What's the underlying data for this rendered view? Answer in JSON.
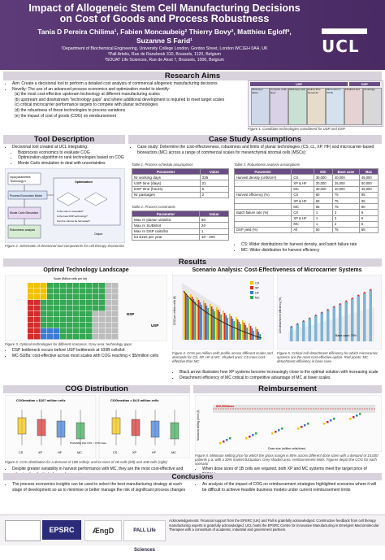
{
  "header": {
    "title_line1": "Impact of Allogeneic Stem Cell Manufacturing Decisions",
    "title_line2": "on Cost of Goods and Process Robustness",
    "authors_line1": "Tania D Pereira Chilima¹, Fabien Moncaubeig² Thierry Bovy², Matthieu Egloff³,",
    "authors_line2": "Suzanne S Farid¹",
    "affil1": "¹Department of Biochemical Engineering, University College London, Gordon Street, London WC1EH 0AH, UK",
    "affil2": "²Pall Artelis, Rue de Ransbeek 310, Brussels, 1120, Belgium",
    "affil3": "³SOUAT Life Sciences, Rue de Alost 7, Brussels, 1000, Belgium",
    "logo": "UCL"
  },
  "research_aims": {
    "title": "Research Aims",
    "items": [
      "Aim: Create a decisional tool to perform a detailed cost analysis of commercial allogeneic manufacturing decisions",
      "Novelty: The use of an advanced process economics and optimization model to identify:",
      "(a) the most cost-effective upstream technology at different manufacturing scales",
      "(b) upstream and downstream \"technology gaps\" and where additional development is required to meet target scales",
      "(c) critical microcarrier performance targets to compete with planar technologies",
      "(d) the robustness of these technologies to process variations",
      "(e) the impact of cost of goods (COG) on reimbursement"
    ],
    "fig1_caption": "Figure 1. Candidate technologies considered for USP and DSP",
    "usp_label": "USP",
    "dsp_label": "DSP",
    "tech_labels": [
      "Multi-layer flasks",
      "Compact multi-layer",
      "Multi-layer (40)",
      "Hollow fibre bioreactor",
      "Microcarriers (STR)",
      "Fluidised bed",
      "Centrifuge"
    ]
  },
  "tool_description": {
    "title": "Tool Description",
    "items": [
      "Decisional tool created at UCL integrating:",
      "Bioprocess economics to evaluate COG",
      "Optimization algorithm to rank technologies based on COG",
      "Monte Carlo simulation to deal with uncertainties"
    ],
    "diagram_labels": [
      "Input parameters",
      "Technology n",
      "Optimization",
      "Process Economics Model",
      "Monte Carlo Simulation",
      "Robustness analysis",
      "Is the max m exceeded?",
      "Is the best DSP technology?",
      "Can the volume be harvested?",
      "Output"
    ],
    "fig2_caption": "Figure 2. Schematic of decisional tool components for cell therapy economics"
  },
  "case_study": {
    "title": "Case Study Assumptions",
    "text": "Case study: Determine the cost-effectiveness, robustness and limits of planar technologies (CS, cL, XP, HF) and microcarrier-based bioreactors (MC) across a range of commercial scales for mesenchymal stromal cells (MSCs):",
    "table1_caption": "Table 1. Process schedule assumptions",
    "table1_headers": [
      "Parameter",
      "Value"
    ],
    "table1_rows": [
      [
        "Nr working days",
        "335"
      ],
      [
        "USP time (days)",
        "21"
      ],
      [
        "DSP time (hours)",
        "6"
      ],
      [
        "Nr passages",
        "2"
      ]
    ],
    "table2_caption": "Table 2. Process constraints",
    "table2_headers": [
      "Parameter",
      "Value"
    ],
    "table2_rows": [
      [
        "Max nr planar units/lot",
        "60"
      ],
      [
        "Max nr SUBs/lot",
        "20"
      ],
      [
        "Max nr DSP units/lot",
        "1"
      ],
      [
        "lot sizes per year",
        "10 - 200"
      ]
    ],
    "table3_caption": "Table 3. Robustness analysis assumptions",
    "table3_headers": [
      "Parameter",
      "",
      "Min",
      "Base case",
      "Max"
    ],
    "table3_rows": [
      [
        "Harvest density (cells/cm²)",
        "CS",
        "30,000",
        "40,000",
        "45,000"
      ],
      [
        "",
        "XP & HF",
        "20,000",
        "25,000",
        "50,000"
      ],
      [
        "",
        "MC",
        "30,000",
        "40,000",
        "45,000"
      ],
      [
        "Harvest efficiency (%)",
        "CS",
        "60",
        "75",
        "95"
      ],
      [
        "",
        "XP & HF",
        "60",
        "75",
        "95"
      ],
      [
        "",
        "MC",
        "65",
        "75",
        "90"
      ],
      [
        "Batch failure rate (%)",
        "CS",
        "1",
        "3",
        "6"
      ],
      [
        "",
        "XP & HF",
        "1",
        "3",
        "6"
      ],
      [
        "",
        "MC",
        "1",
        "2",
        "5"
      ],
      [
        "DSP yield (%)",
        "All",
        "50",
        "75",
        "85"
      ]
    ],
    "notes": [
      "CS: Wider distributions for harvest density, and batch failure rate",
      "MC: Wider distribution for harvest efficiency"
    ]
  },
  "results": {
    "title": "Results",
    "landscape_title": "Optimal Technology Landscape",
    "scenario_title": "Scenario Analysis: Cost-Effectiveness of Microcarrier Systems",
    "fig3_caption": "Figure 3. Optimal technologies for different scenarios. Grey area: technology gaps",
    "landscape_bullets": [
      "DSP bottleneck occurs before USP bottleneck at 100B cells/lot",
      "MC-SUBs: cost-effective across most scales with COG reaching < $5/million cells"
    ],
    "landscape_labels": {
      "scale_axis": "Scale (Billion cells per lot)",
      "demand_axis": "Demand (Billion cells per year)",
      "dsp": "DSP",
      "usp": "USP",
      "legend": [
        "CS",
        "XP",
        "HF",
        "MC"
      ]
    },
    "fig4_caption": "Figure 4. COG per million cells profile across different scales and demands for CS, XP, HF & MC. Shaded area: CS more cost-effective than MC",
    "fig5_caption": "Figure 5. Critical cell detachment efficiency for which microcarrier systems are the most cost-effective option. Red points: MC detachment efficiency in base case",
    "scenario_bullets": [
      "Black arrow illustrates how XP systems become increasingly close to the optimal solution with increasing scale",
      "Detachment efficiency of MC critical to competitive advantage of MC at lower scales"
    ],
    "fig4_axes": {
      "y": "COG per million cells ($)",
      "legend": [
        "CS",
        "XP",
        "HF",
        "MC"
      ]
    },
    "fig5_axes": {
      "y": "Cell detachment efficiency (%)",
      "base_case": "Base case: 75%"
    }
  },
  "cog_distribution": {
    "title": "COG Distribution",
    "label_left": "COGmedian = $107 million cells",
    "label_right": "COGmedian = $4.5 million cells",
    "fig6_caption": "Figure 6. COG distribution for a demand of 10B cells/yr and lot sizes of 1B cells (left) and 10B cells (right)",
    "bullets": [
      "Despite greater variability in harvest performance with MC, they are the most cost-effective and robust option for high demand scenarios"
    ],
    "box_labels": [
      "CS",
      "XP",
      "HF",
      "MC"
    ],
    "prob_note": "Probability that COG > COG base"
  },
  "reimbursement": {
    "title": "Reimbursement",
    "y_axis": "Minimum selling price ($)",
    "x_axis": "Dose size (million cells/dose)",
    "price_label": "$30,000/dose",
    "fig8_caption": "Figure 8. Minimum selling price for which the gross margin is 85% across different dose sizes with a demand of 10,000 patients p.a. with a 30% market fluctuation. Grey shaded area: reimbursement limits. Figures depict the COG for each scenario",
    "bullets": [
      "When dose sizes of 1B cells are required, both XP and MC systems meet the target price of $40K/dose"
    ]
  },
  "conclusions": {
    "title": "Conclusions",
    "left": [
      "The process economics insights can be used to select the best manufacturing strategy at each stage of development so as to minimise or better manage the risk of significant process changes"
    ],
    "right": [
      "An analysis of the impact of COG on reimbursement strategies highlighted scenarios where it will be difficult to achieve feasible business models under current reimbursement limits"
    ]
  },
  "footer": {
    "logos": [
      "EPSRC",
      "ÆngD",
      "PALL Life Sciences"
    ],
    "acknowledgements": "Acknowledgements: Financial support from the EPSRC (UK) and Pall is gratefully acknowledged. Constructive feedback from cell therapy manufacturing experts is gratefully acknowledged. UCL hosts the EPSRC Centre for Innovative Manufacturing in Emergent Macromolecular Therapies with a consortium of academic, industrial and government partners."
  }
}
